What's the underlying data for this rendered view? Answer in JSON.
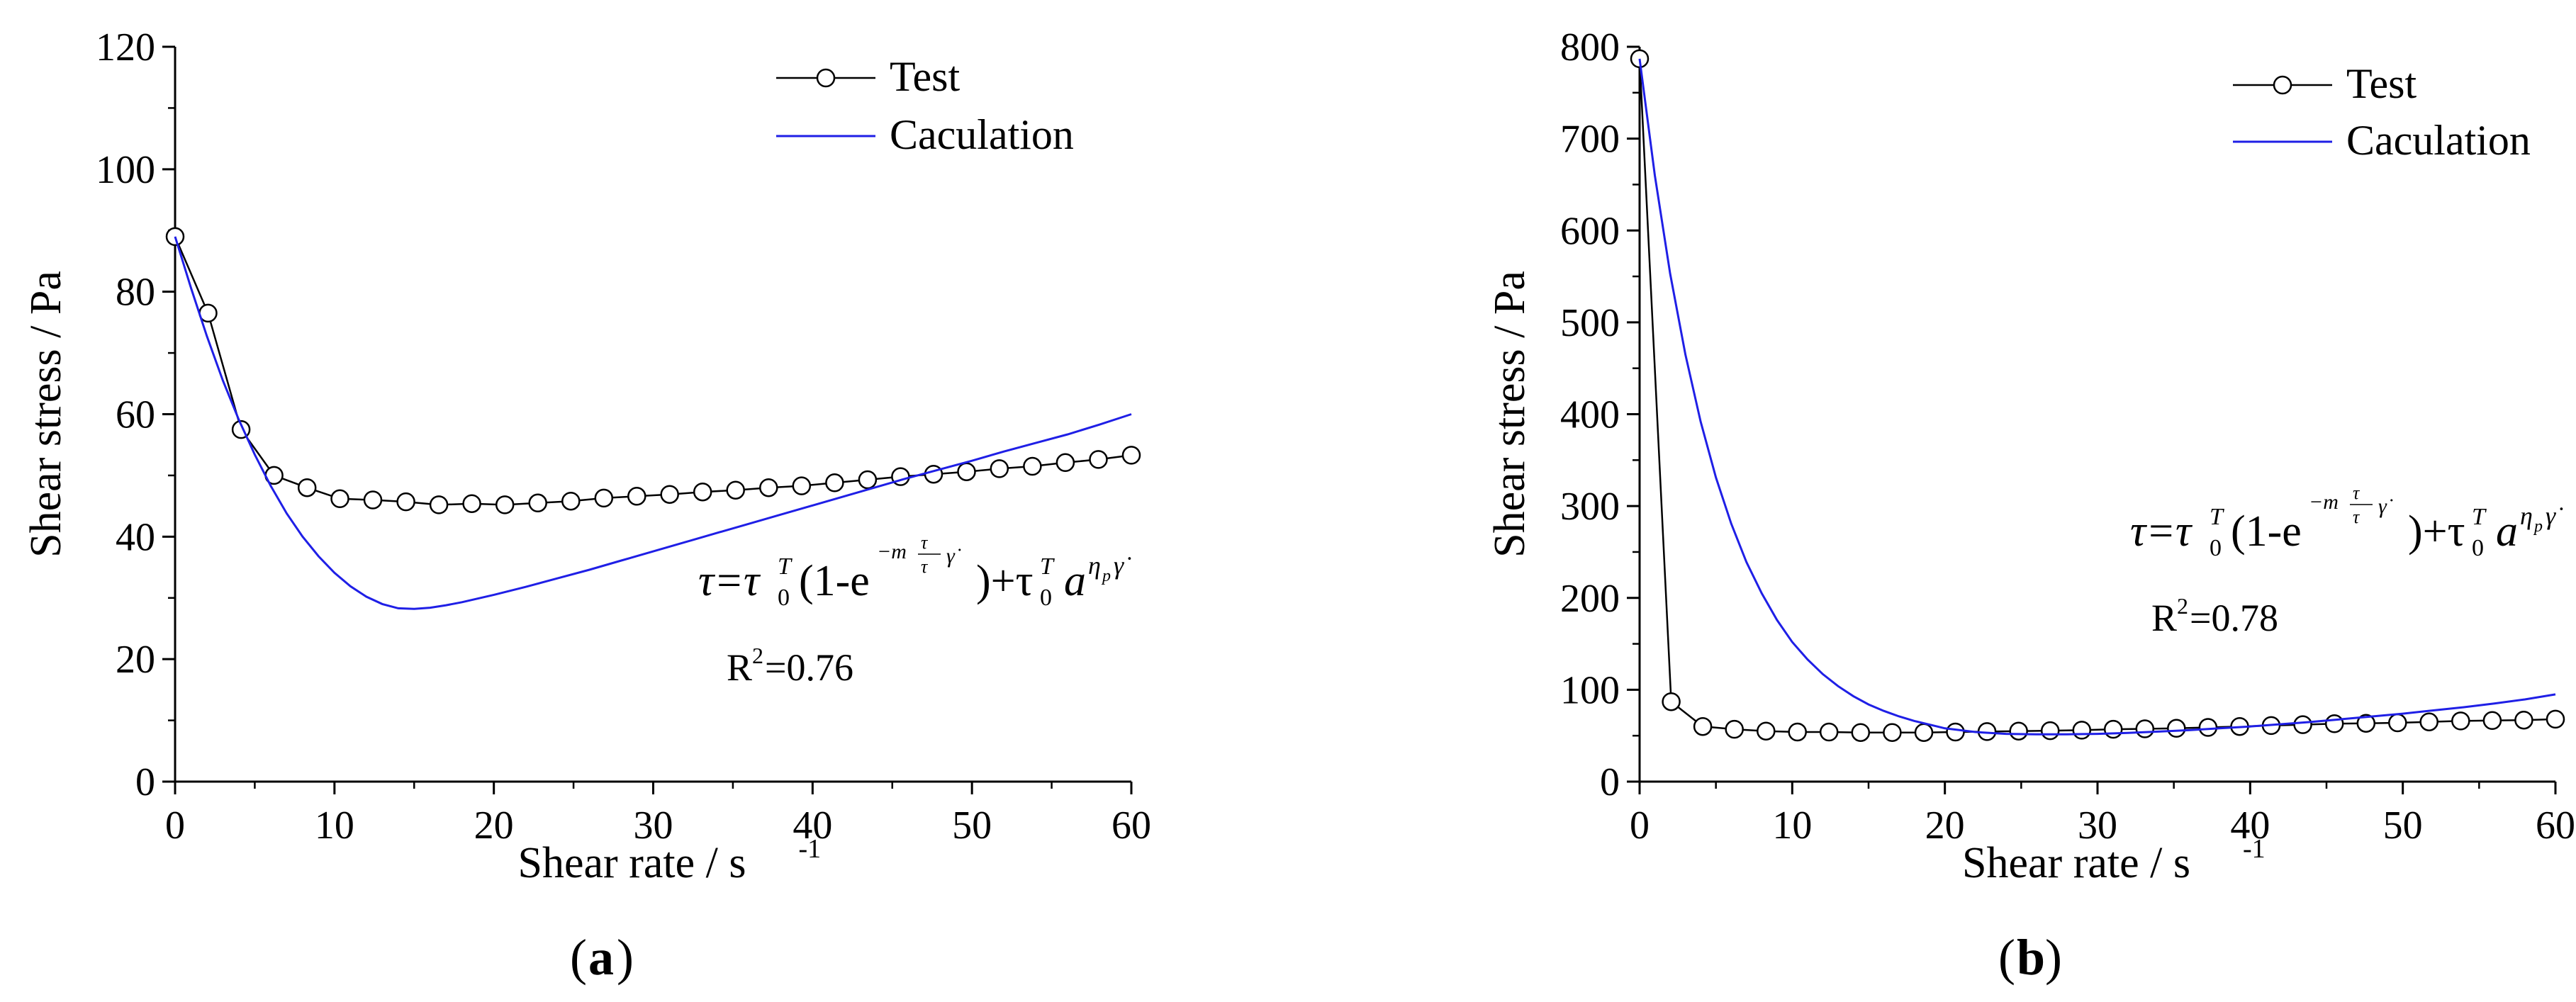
{
  "chart_data": [
    {
      "type": "line",
      "panel": "a",
      "xlabel": "Shear rate / s",
      "xlabel_sup": "-1",
      "ylabel": "Shear stress / Pa",
      "xlim": [
        0,
        60
      ],
      "ylim": [
        0,
        120
      ],
      "xticks": [
        0,
        10,
        20,
        30,
        40,
        50,
        60
      ],
      "yticks": [
        0,
        20,
        40,
        60,
        80,
        100,
        120
      ],
      "legend": "top-right",
      "series": [
        {
          "name": "Test",
          "style": "line-with-circle-markers",
          "color": "#000000",
          "x": [
            0,
            2.07,
            4.14,
            6.21,
            8.28,
            10.34,
            12.41,
            14.48,
            16.55,
            18.62,
            20.69,
            22.76,
            24.83,
            26.9,
            28.97,
            31.03,
            33.1,
            35.17,
            37.24,
            39.31,
            41.38,
            43.45,
            45.52,
            47.59,
            49.66,
            51.72,
            53.79,
            55.86,
            57.93,
            60
          ],
          "y": [
            89,
            76.5,
            57.5,
            50,
            48,
            46.2,
            46,
            45.7,
            45.2,
            45.4,
            45.2,
            45.5,
            45.8,
            46.3,
            46.6,
            46.9,
            47.3,
            47.6,
            48,
            48.3,
            48.8,
            49.3,
            49.8,
            50.2,
            50.6,
            51.1,
            51.5,
            52.1,
            52.6,
            53.3
          ]
        },
        {
          "name": "Caculation",
          "style": "line",
          "color": "#1f1fe6",
          "x": [
            0,
            1,
            2,
            3,
            4,
            5,
            6,
            7,
            8,
            9,
            10,
            11,
            12,
            13,
            14,
            15,
            16,
            17,
            18,
            20,
            22,
            24,
            26,
            28,
            30,
            32,
            34,
            36,
            38,
            40,
            42,
            44,
            46,
            48,
            50,
            52,
            54,
            56,
            58,
            60
          ],
          "y": [
            89,
            80.6,
            72.7,
            65.5,
            59.1,
            53.4,
            48.3,
            43.8,
            40,
            36.8,
            34.1,
            31.9,
            30.2,
            29,
            28.3,
            28.2,
            28.4,
            28.8,
            29.3,
            30.5,
            31.8,
            33.2,
            34.6,
            36.1,
            37.6,
            39.1,
            40.6,
            42.1,
            43.6,
            45.1,
            46.6,
            48.1,
            49.6,
            51,
            52.4,
            53.9,
            55.3,
            56.7,
            58.3,
            60
          ]
        }
      ],
      "annotation": {
        "equation_main": "τ=τ",
        "equation_part2": "(1-e",
        "equation_part3": ")+τ",
        "equation_part4": "a",
        "sub_zero": "0",
        "sup_T": "T",
        "exp_small_1": "−m",
        "exp_small_frac_top": "τ",
        "exp_small_gamma": "γ̇",
        "exp_eta": "η",
        "exp_eta_sub": "p",
        "r2_label": "R",
        "r2_sup": "2",
        "r2_value": "=0.76"
      },
      "panel_label": "a"
    },
    {
      "type": "line",
      "panel": "b",
      "xlabel": "Shear rate / s",
      "xlabel_sup": "-1",
      "ylabel": "Shear stress / Pa",
      "xlim": [
        0,
        60
      ],
      "ylim": [
        0,
        800
      ],
      "xticks": [
        0,
        10,
        20,
        30,
        40,
        50,
        60
      ],
      "yticks": [
        0,
        100,
        200,
        300,
        400,
        500,
        600,
        700,
        800
      ],
      "legend": "top-right",
      "series": [
        {
          "name": "Test",
          "style": "line-with-circle-markers",
          "color": "#000000",
          "x": [
            0,
            2.07,
            4.14,
            6.21,
            8.28,
            10.34,
            12.41,
            14.48,
            16.55,
            18.62,
            20.69,
            22.76,
            24.83,
            26.9,
            28.97,
            31.03,
            33.1,
            35.17,
            37.24,
            39.31,
            41.38,
            43.45,
            45.52,
            47.59,
            49.66,
            51.72,
            53.79,
            55.86,
            57.93,
            60
          ],
          "y": [
            787,
            87,
            60,
            57,
            55,
            54,
            54,
            53.5,
            53.5,
            53.5,
            54,
            54.5,
            55,
            55.5,
            56,
            57,
            57.5,
            58,
            59,
            60,
            61,
            62,
            63,
            63.5,
            64,
            65,
            66,
            66.5,
            67,
            68
          ]
        },
        {
          "name": "Caculation",
          "style": "line",
          "color": "#1f1fe6",
          "x": [
            0,
            1,
            2,
            3,
            4,
            5,
            6,
            7,
            8,
            9,
            10,
            11,
            12,
            13,
            14,
            15,
            16,
            17,
            18,
            19,
            20,
            21,
            22,
            24,
            26,
            28,
            30,
            32,
            34,
            36,
            38,
            40,
            42,
            44,
            46,
            48,
            50,
            52,
            54,
            56,
            58,
            60
          ],
          "y": [
            787,
            660,
            553,
            465,
            392,
            331,
            281,
            239,
            205,
            176,
            152,
            133,
            117,
            104,
            93,
            84,
            77,
            71,
            66,
            62,
            58,
            56,
            54,
            52,
            51.5,
            51.5,
            52,
            53,
            54.5,
            56,
            58,
            60,
            62.5,
            65,
            68,
            71,
            74,
            77.5,
            81,
            85,
            89.5,
            95
          ]
        }
      ],
      "annotation": {
        "equation_main": "τ=τ",
        "equation_part2": "(1-e",
        "equation_part3": ")+τ",
        "equation_part4": "a",
        "sub_zero": "0",
        "sup_T": "T",
        "exp_small_1": "−m",
        "exp_small_frac_top": "τ",
        "exp_small_gamma": "γ̇",
        "exp_eta": "η",
        "exp_eta_sub": "p",
        "r2_label": "R",
        "r2_sup": "2",
        "r2_value": "=0.78"
      },
      "panel_label": "b"
    }
  ]
}
